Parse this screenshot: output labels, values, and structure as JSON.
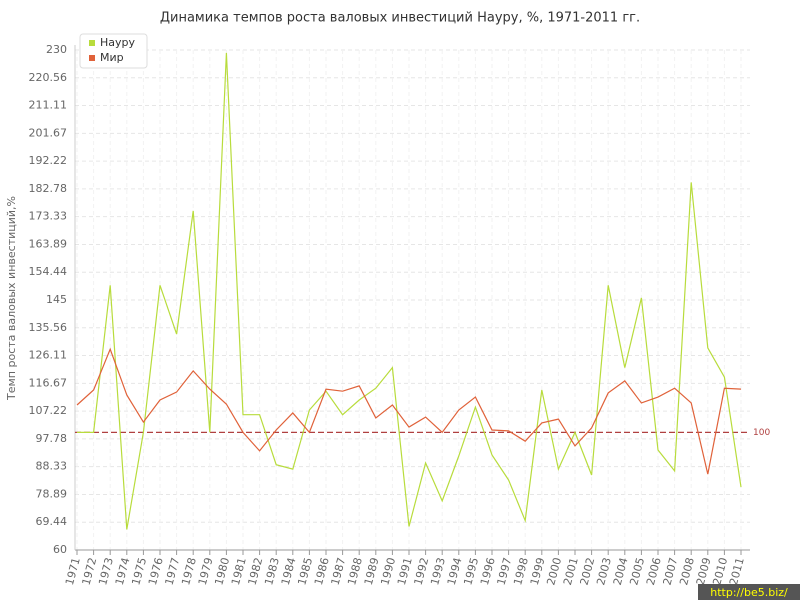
{
  "chart_data": {
    "type": "line",
    "title": "Динамика темпов роста валовых инвестиций Науру, %, 1971-2011 гг.",
    "y_label": "Темп роста валовых инвестиций,%",
    "categories": [
      "1971",
      "1972",
      "1973",
      "1974",
      "1975",
      "1976",
      "1977",
      "1978",
      "1979",
      "1980",
      "1981",
      "1982",
      "1983",
      "1984",
      "1985",
      "1986",
      "1987",
      "1988",
      "1989",
      "1990",
      "1991",
      "1992",
      "1993",
      "1994",
      "1995",
      "1996",
      "1997",
      "1998",
      "1999",
      "2000",
      "2001",
      "2002",
      "2003",
      "2004",
      "2005",
      "2006",
      "2007",
      "2008",
      "2009",
      "2010",
      "2011"
    ],
    "series": [
      {
        "name": "Науру",
        "color": "#b8dc3c",
        "values": [
          100,
          100,
          150,
          67,
          100,
          150,
          133.4,
          175.3,
          100,
          229,
          106,
          106,
          89,
          87.5,
          107.6,
          114,
          106,
          111,
          115,
          122,
          68,
          89.6,
          76.7,
          92,
          108.6,
          92.3,
          83.8,
          70,
          114.4,
          87.5,
          100,
          85.5,
          150,
          122,
          145.7,
          94,
          86.9,
          185,
          128.7,
          118.8,
          81.4
        ]
      },
      {
        "name": "Мир",
        "color": "#e0623a",
        "values": [
          109.3,
          114.4,
          128.3,
          112.7,
          103.5,
          111,
          113.7,
          120.9,
          114.7,
          109.6,
          100,
          93.7,
          100.8,
          106.6,
          100,
          114.7,
          114,
          115.8,
          104.9,
          109.3,
          101.8,
          105.2,
          100,
          107.6,
          112,
          100.8,
          100.5,
          97,
          103.2,
          104.5,
          95.4,
          101.5,
          113.4,
          117.5,
          110,
          112,
          115,
          110,
          85.8,
          115,
          114.7
        ]
      }
    ],
    "ylim": [
      60,
      230
    ],
    "yticks": [
      60,
      69.44,
      78.89,
      88.33,
      97.78,
      107.22,
      116.67,
      126.11,
      135.56,
      145,
      154.44,
      163.89,
      173.33,
      182.78,
      192.22,
      201.67,
      211.11,
      220.56,
      230
    ],
    "grid": true,
    "reference_line": 100,
    "reference_color": "#b04040",
    "legend": "top-left",
    "watermark": "http://be5.biz/"
  }
}
